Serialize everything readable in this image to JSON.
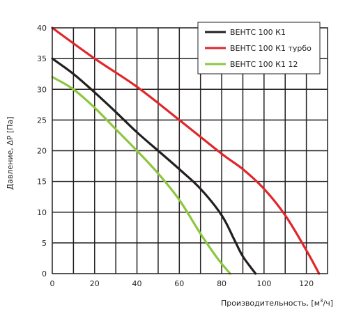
{
  "chart_data": {
    "type": "line",
    "title": "",
    "xlabel": {
      "pre": "Производительность, [м",
      "sup": "3",
      "post": "/ч]"
    },
    "ylabel": "Давление, ΔP [Па]",
    "xlim": [
      0,
      130
    ],
    "ylim": [
      0,
      40
    ],
    "xticks": [
      0,
      20,
      40,
      60,
      80,
      100,
      120
    ],
    "yticks": [
      0,
      5,
      10,
      15,
      20,
      25,
      30,
      35,
      40
    ],
    "x_grid_step": 10,
    "y_grid_step": 5,
    "grid": true,
    "legend_position": "top-right",
    "series": [
      {
        "name": "ВЕНТС 100 К1",
        "color": "#231f20",
        "points": [
          [
            0,
            35
          ],
          [
            10,
            32.5
          ],
          [
            20,
            29.5
          ],
          [
            30,
            26.3
          ],
          [
            40,
            23
          ],
          [
            50,
            20
          ],
          [
            60,
            17
          ],
          [
            70,
            13.8
          ],
          [
            80,
            9.5
          ],
          [
            86,
            5.5
          ],
          [
            90,
            2.8
          ],
          [
            96,
            0
          ]
        ]
      },
      {
        "name": "ВЕНТС 100 К1 турбо",
        "color": "#e0262a",
        "points": [
          [
            0,
            40
          ],
          [
            20,
            35
          ],
          [
            40,
            30.4
          ],
          [
            60,
            25
          ],
          [
            80,
            19.5
          ],
          [
            90,
            17
          ],
          [
            100,
            13.8
          ],
          [
            110,
            9.5
          ],
          [
            120,
            3.8
          ],
          [
            126,
            0
          ]
        ]
      },
      {
        "name": "ВЕНТС 100 К1 12",
        "color": "#8dc63f",
        "points": [
          [
            0,
            32
          ],
          [
            10,
            30
          ],
          [
            20,
            27
          ],
          [
            30,
            23.5
          ],
          [
            40,
            20
          ],
          [
            50,
            16.3
          ],
          [
            60,
            12
          ],
          [
            70,
            6.5
          ],
          [
            78,
            2.5
          ],
          [
            84,
            0
          ]
        ]
      }
    ]
  }
}
